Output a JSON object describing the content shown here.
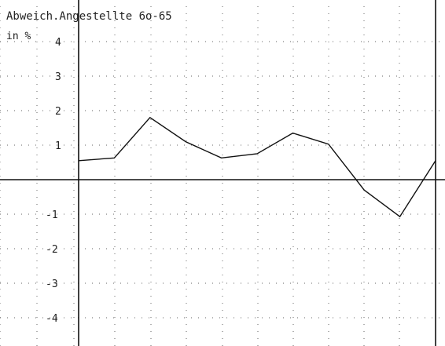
{
  "chart_data": {
    "type": "line",
    "title": "Abweich.Angestellte 6o-65",
    "ylabel": "in %",
    "xlabel": "",
    "ylim": [
      -4.6,
      5.0
    ],
    "y_ticks": [
      4,
      3,
      2,
      1,
      -1,
      -2,
      -3,
      -4
    ],
    "y_tick_labels": [
      "4",
      "3",
      "2",
      "1",
      "-1",
      "-2",
      "-3",
      "-4"
    ],
    "grid": true,
    "series": [
      {
        "values": [
          0.55,
          0.63,
          1.8,
          1.1,
          0.63,
          0.75,
          1.35,
          1.03,
          -0.3,
          -1.07,
          0.55
        ]
      }
    ]
  }
}
